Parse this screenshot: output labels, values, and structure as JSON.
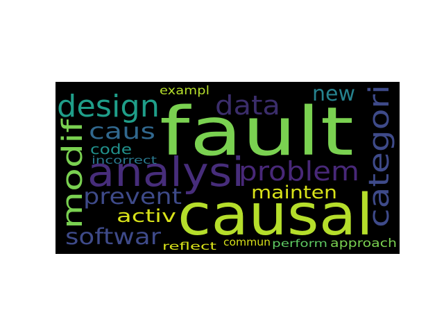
{
  "wordcloud": {
    "background": "#000000",
    "words": [
      {
        "text": "fault",
        "color": "#7ad151"
      },
      {
        "text": "causal",
        "color": "#b5de2b"
      },
      {
        "text": "analysi",
        "color": "#472d7b"
      },
      {
        "text": "design",
        "color": "#1f9e89"
      },
      {
        "text": "problem",
        "color": "#482878"
      },
      {
        "text": "data",
        "color": "#3b2d6b"
      },
      {
        "text": "categori",
        "color": "#3e4a89"
      },
      {
        "text": "modif",
        "color": "#7ad151"
      },
      {
        "text": "caus",
        "color": "#31688e"
      },
      {
        "text": "new",
        "color": "#26828e"
      },
      {
        "text": "prevent",
        "color": "#3e4a89"
      },
      {
        "text": "mainten",
        "color": "#d8e219"
      },
      {
        "text": "softwar",
        "color": "#3e4a89"
      },
      {
        "text": "code",
        "color": "#21918c"
      },
      {
        "text": "activ",
        "color": "#d8e219"
      },
      {
        "text": "exampl",
        "color": "#b5de2b"
      },
      {
        "text": "incorrect",
        "color": "#2a788e"
      },
      {
        "text": "approach",
        "color": "#7ad151"
      },
      {
        "text": "reflect",
        "color": "#d8e219"
      },
      {
        "text": "commun",
        "color": "#d8e219"
      },
      {
        "text": "perform",
        "color": "#5ec962"
      }
    ]
  }
}
